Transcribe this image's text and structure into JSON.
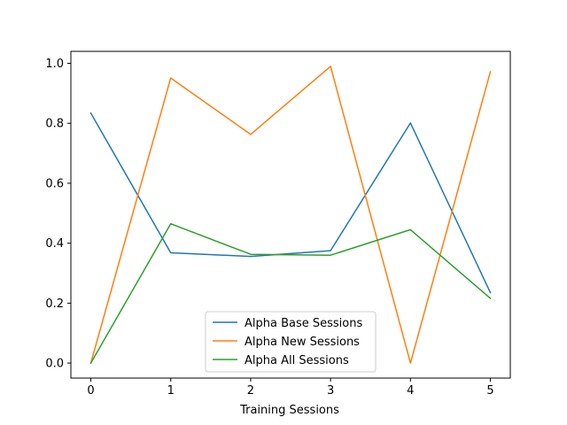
{
  "chart_data": {
    "type": "line",
    "title": "",
    "xlabel": "Training Sessions",
    "ylabel": "",
    "x": [
      0,
      1,
      2,
      3,
      4,
      5
    ],
    "xlim": [
      -0.25,
      5.25
    ],
    "ylim": [
      -0.05,
      1.04
    ],
    "xticks": [
      "0",
      "1",
      "2",
      "3",
      "4",
      "5"
    ],
    "yticks": [
      "0.0",
      "0.2",
      "0.4",
      "0.6",
      "0.8",
      "1.0"
    ],
    "grid": false,
    "legend_position": "lower center",
    "series": [
      {
        "name": "Alpha Base Sessions",
        "color": "#1f77b4",
        "values": [
          0.834,
          0.368,
          0.356,
          0.375,
          0.801,
          0.235
        ]
      },
      {
        "name": "Alpha New Sessions",
        "color": "#ff7f0e",
        "values": [
          0.0,
          0.951,
          0.763,
          0.99,
          0.0,
          0.972
        ]
      },
      {
        "name": "Alpha All Sessions",
        "color": "#2ca02c",
        "values": [
          0.0,
          0.465,
          0.363,
          0.36,
          0.445,
          0.216
        ]
      }
    ]
  }
}
